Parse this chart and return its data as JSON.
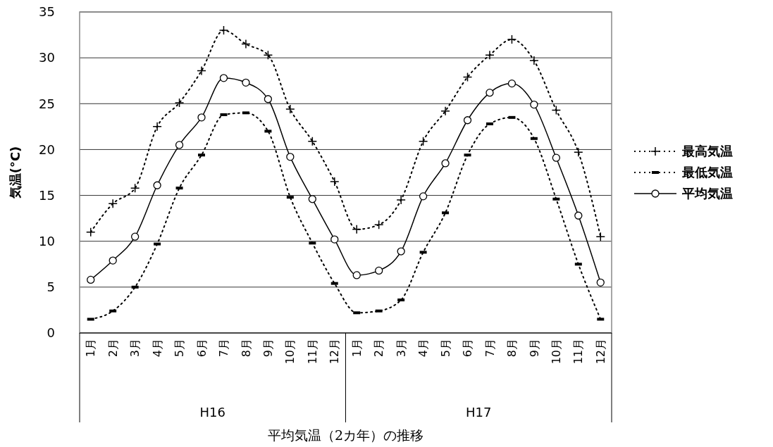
{
  "chart_data": {
    "type": "line",
    "title": "平均気温（2カ年）の推移",
    "ylabel": "気温(°C)",
    "categories": [
      "1月",
      "2月",
      "3月",
      "4月",
      "5月",
      "6月",
      "7月",
      "8月",
      "9月",
      "10月",
      "11月",
      "12月",
      "1月",
      "2月",
      "3月",
      "4月",
      "5月",
      "6月",
      "7月",
      "8月",
      "9月",
      "10月",
      "11月",
      "12月"
    ],
    "annotations": [
      "H16",
      "H17"
    ],
    "series": [
      {
        "name": "最高気温",
        "color": "#000000",
        "line_style": "dotted",
        "marker": "cross",
        "values": [
          11.0,
          14.1,
          15.8,
          22.5,
          25.1,
          28.6,
          33.0,
          31.5,
          30.3,
          24.4,
          20.9,
          16.5,
          11.3,
          11.8,
          14.5,
          20.9,
          24.2,
          27.9,
          30.3,
          32.0,
          29.7,
          24.3,
          19.7,
          10.5
        ]
      },
      {
        "name": "最低気温",
        "color": "#000000",
        "line_style": "dotted",
        "marker": "square",
        "values": [
          1.5,
          2.4,
          5.0,
          9.7,
          15.8,
          19.4,
          23.8,
          24.0,
          22.0,
          14.8,
          9.8,
          5.4,
          2.2,
          2.4,
          3.6,
          8.8,
          13.1,
          19.4,
          22.8,
          23.5,
          21.2,
          14.6,
          7.5,
          1.5
        ]
      },
      {
        "name": "平均気温",
        "color": "#000000",
        "line_style": "solid",
        "marker": "circle",
        "values": [
          5.8,
          7.9,
          10.5,
          16.1,
          20.5,
          23.5,
          27.8,
          27.3,
          25.5,
          19.2,
          14.6,
          10.2,
          6.3,
          6.8,
          8.9,
          14.9,
          18.5,
          23.2,
          26.2,
          27.2,
          24.9,
          19.1,
          12.8,
          5.5
        ]
      }
    ],
    "ylim": [
      0,
      35
    ],
    "yticks": [
      0,
      5,
      10,
      15,
      20,
      25,
      30,
      35
    ],
    "grid": "y",
    "legend": "right"
  }
}
